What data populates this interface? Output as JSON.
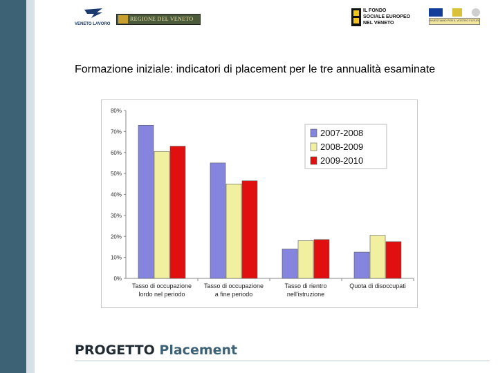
{
  "header": {
    "veneto_lavoro_text": "VENETO LAVORO",
    "regione_text": "REGIONE DEL VENETO",
    "fse_line1": "IL FONDO",
    "fse_line2": "SOCIALE EUROPEO",
    "fse_line3": "NEL VENETO",
    "eu_strip_text": "INVESTIAMO PER IL VOSTRO FUTURO"
  },
  "title": "Formazione iniziale: indicatori di placement per le tre annualità esaminate",
  "footer": {
    "word1": "PROGETTO",
    "word2": "Placement"
  },
  "colors": {
    "sidebar": "#3d6276",
    "series": [
      "#8585e0",
      "#f0f0a0",
      "#e01010"
    ]
  },
  "chart_data": {
    "type": "bar",
    "categories": [
      [
        "Tasso di occupazione",
        "lordo nel periodo"
      ],
      [
        "Tasso di occupazione",
        "a fine periodo"
      ],
      [
        "Tasso di rientro",
        "nell'istruzione"
      ],
      [
        "Quota di disoccupati",
        ""
      ]
    ],
    "series": [
      {
        "name": "2007-2008",
        "values": [
          73,
          55,
          14,
          12.5
        ],
        "color": "#8585e0"
      },
      {
        "name": "2008-2009",
        "values": [
          60.5,
          45,
          18,
          20.5
        ],
        "color": "#f0f0a0"
      },
      {
        "name": "2009-2010",
        "values": [
          63,
          46.5,
          18.5,
          17.5
        ],
        "color": "#e01010"
      }
    ],
    "yticks": [
      "0%",
      "10%",
      "20%",
      "30%",
      "40%",
      "50%",
      "60%",
      "70%",
      "80%"
    ],
    "ylim": [
      0,
      80
    ],
    "grid": false,
    "legend_position": "top-right"
  }
}
